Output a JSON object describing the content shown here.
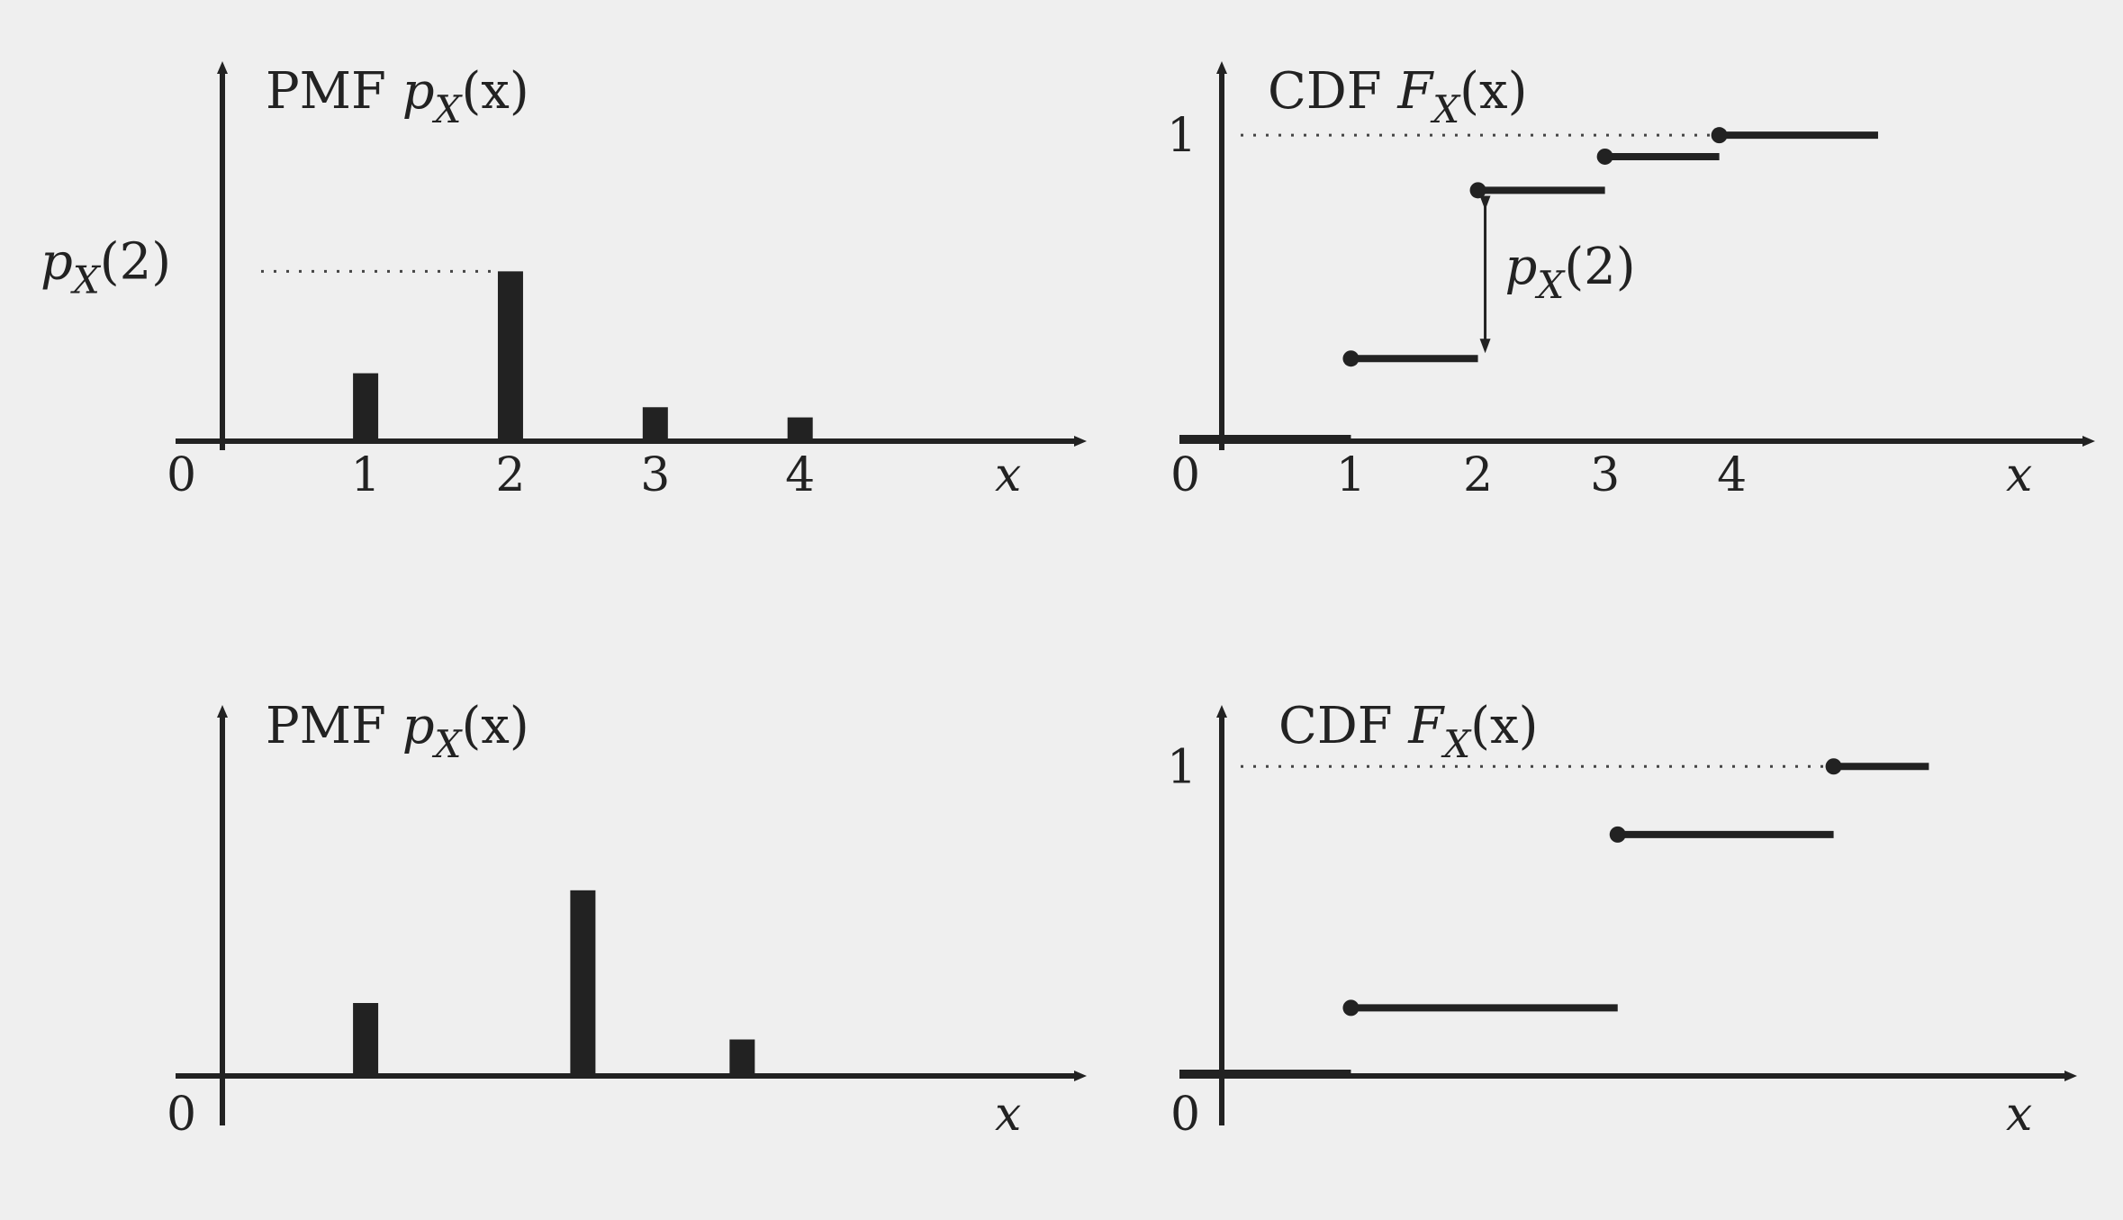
{
  "chart_data": [
    {
      "type": "bar",
      "title": "PMF p_X(x)",
      "xlabel": "x",
      "origin_label": "0",
      "x_ticks": [
        "1",
        "2",
        "3",
        "4"
      ],
      "x": [
        1,
        2,
        3,
        4
      ],
      "values": [
        0.2,
        0.5,
        0.1,
        0.07
      ],
      "y_label": "p_X(2)",
      "y_label_value": 0.5,
      "xlim": [
        -0.25,
        5.5
      ],
      "ylim": [
        0,
        1.1
      ]
    },
    {
      "type": "line",
      "style": "step",
      "title": "CDF F_X(x)",
      "xlabel": "x",
      "origin_label": "0",
      "x_ticks": [
        "1",
        "2",
        "3",
        "4"
      ],
      "y_tick": "1",
      "steps": [
        {
          "x_start": -0.35,
          "x_end": 1,
          "y": 0
        },
        {
          "x_start": 1,
          "x_end": 2,
          "y": 0.27
        },
        {
          "x_start": 2,
          "x_end": 3,
          "y": 0.82
        },
        {
          "x_start": 3,
          "x_end": 3.9,
          "y": 0.93
        },
        {
          "x_start": 3.9,
          "x_end": 5.15,
          "y": 1.0
        }
      ],
      "jump_annotation": {
        "x": 2,
        "from": 0.27,
        "to": 0.82,
        "label": "p_X(2)"
      },
      "xlim": [
        -0.35,
        6.1
      ],
      "ylim": [
        0,
        1.28
      ]
    },
    {
      "type": "bar",
      "title": "PMF p_X(x)",
      "xlabel": "x",
      "origin_label": "0",
      "x": [
        1,
        2.5,
        3.6
      ],
      "values": [
        0.22,
        0.56,
        0.11
      ],
      "xlim": [
        -0.25,
        5.5
      ],
      "ylim": [
        0,
        1.1
      ]
    },
    {
      "type": "line",
      "style": "step",
      "title": "CDF F_X(x)",
      "xlabel": "x",
      "origin_label": "0",
      "y_tick": "1",
      "steps": [
        {
          "x_start": -0.35,
          "x_end": 1,
          "y": 0
        },
        {
          "x_start": 1,
          "x_end": 3.1,
          "y": 0.22
        },
        {
          "x_start": 3.1,
          "x_end": 4.8,
          "y": 0.78
        },
        {
          "x_start": 4.8,
          "x_end": 5.55,
          "y": 1.0
        }
      ],
      "xlim": [
        -0.35,
        6.1
      ],
      "ylim": [
        0,
        1.28
      ]
    }
  ]
}
